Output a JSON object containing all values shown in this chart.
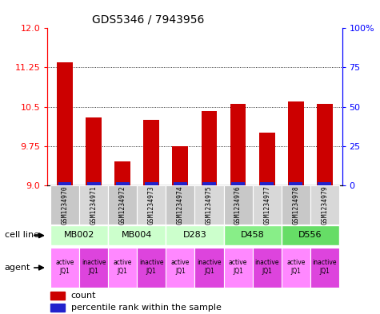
{
  "title": "GDS5346 / 7943956",
  "samples": [
    "GSM1234970",
    "GSM1234971",
    "GSM1234972",
    "GSM1234973",
    "GSM1234974",
    "GSM1234975",
    "GSM1234976",
    "GSM1234977",
    "GSM1234978",
    "GSM1234979"
  ],
  "count_values": [
    11.35,
    10.3,
    9.45,
    10.25,
    9.75,
    10.42,
    10.55,
    10.0,
    10.6,
    10.55
  ],
  "ymin": 9.0,
  "ymax": 12.0,
  "yticks": [
    9.0,
    9.75,
    10.5,
    11.25,
    12.0
  ],
  "y2ticks": [
    0,
    25,
    50,
    75,
    100
  ],
  "bar_color": "#cc0000",
  "percentile_color": "#2222cc",
  "cell_lines": [
    {
      "label": "MB002",
      "cols": [
        0,
        1
      ],
      "color": "#ccffcc"
    },
    {
      "label": "MB004",
      "cols": [
        2,
        3
      ],
      "color": "#ccffcc"
    },
    {
      "label": "D283",
      "cols": [
        4,
        5
      ],
      "color": "#ccffcc"
    },
    {
      "label": "D458",
      "cols": [
        6,
        7
      ],
      "color": "#88ee88"
    },
    {
      "label": "D556",
      "cols": [
        8,
        9
      ],
      "color": "#66dd66"
    }
  ],
  "agent_colors_active": "#ff88ff",
  "agent_colors_inactive": "#dd44dd",
  "bar_width": 0.55
}
